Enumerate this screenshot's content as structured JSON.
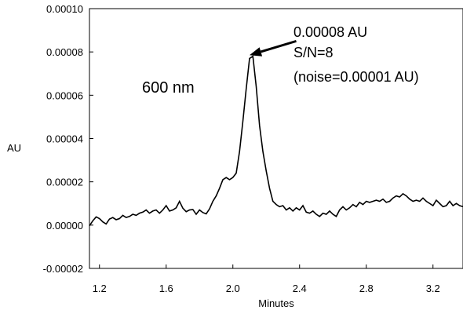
{
  "chart_data": {
    "type": "line",
    "title": "",
    "xlabel": "Minutes",
    "ylabel": "AU",
    "xlim": [
      1.14,
      3.38
    ],
    "ylim": [
      -2e-05,
      0.0001
    ],
    "xticks": [
      "1.2",
      "1.6",
      "2.0",
      "2.4",
      "2.8",
      "3.2"
    ],
    "yticks": [
      "0.00010",
      "0.00008",
      "0.00006",
      "0.00004",
      "0.00002",
      "0.00000",
      "-0.00002"
    ],
    "grid": false,
    "legend": "none",
    "line_color": "#000000",
    "series": [
      {
        "x": [
          1.14,
          1.16,
          1.18,
          1.2,
          1.22,
          1.24,
          1.26,
          1.28,
          1.3,
          1.32,
          1.34,
          1.36,
          1.38,
          1.4,
          1.42,
          1.44,
          1.46,
          1.48,
          1.5,
          1.52,
          1.54,
          1.56,
          1.58,
          1.6,
          1.62,
          1.64,
          1.66,
          1.68,
          1.7,
          1.72,
          1.74,
          1.76,
          1.78,
          1.8,
          1.82,
          1.84,
          1.86,
          1.88,
          1.9,
          1.92,
          1.94,
          1.96,
          1.98,
          2.0,
          2.02,
          2.04,
          2.06,
          2.08,
          2.1,
          2.12,
          2.14,
          2.16,
          2.18,
          2.2,
          2.22,
          2.24,
          2.26,
          2.28,
          2.3,
          2.32,
          2.34,
          2.36,
          2.38,
          2.4,
          2.42,
          2.44,
          2.46,
          2.48,
          2.5,
          2.52,
          2.54,
          2.56,
          2.58,
          2.6,
          2.62,
          2.64,
          2.66,
          2.68,
          2.7,
          2.72,
          2.74,
          2.76,
          2.78,
          2.8,
          2.82,
          2.84,
          2.86,
          2.88,
          2.9,
          2.92,
          2.94,
          2.96,
          2.98,
          3.0,
          3.02,
          3.04,
          3.06,
          3.08,
          3.1,
          3.12,
          3.14,
          3.16,
          3.18,
          3.2,
          3.22,
          3.24,
          3.26,
          3.28,
          3.3,
          3.32,
          3.34,
          3.36,
          3.38
        ],
        "y": [
          -3e-07,
          2e-06,
          3.8e-06,
          3e-06,
          1.5e-06,
          5e-07,
          2.8e-06,
          3.5e-06,
          2.5e-06,
          3e-06,
          4.5e-06,
          3.5e-06,
          4e-06,
          5e-06,
          4.5e-06,
          5.5e-06,
          6e-06,
          7e-06,
          5.5e-06,
          6.5e-06,
          7e-06,
          5.5e-06,
          7e-06,
          9e-06,
          6.5e-06,
          7e-06,
          8e-06,
          1.1e-05,
          7.8e-06,
          6.2e-06,
          7e-06,
          7.2e-06,
          5e-06,
          7e-06,
          5.8e-06,
          5.2e-06,
          7.5e-06,
          1.1e-05,
          1.35e-05,
          1.7e-05,
          2.1e-05,
          2.2e-05,
          2.1e-05,
          2.2e-05,
          2.4e-05,
          3.4e-05,
          4.8e-05,
          6.3e-05,
          7.7e-05,
          7.8e-05,
          6.4e-05,
          4.6e-05,
          3.4e-05,
          2.5e-05,
          1.7e-05,
          1.1e-05,
          9.5e-06,
          8.5e-06,
          9e-06,
          7e-06,
          8e-06,
          6.5e-06,
          8e-06,
          7e-06,
          9e-06,
          6e-06,
          5.5e-06,
          6.5e-06,
          5e-06,
          4e-06,
          5.5e-06,
          5e-06,
          6.5e-06,
          5e-06,
          4e-06,
          7e-06,
          8.5e-06,
          7e-06,
          8e-06,
          9.5e-06,
          8.5e-06,
          1.05e-05,
          9.5e-06,
          1.1e-05,
          1.05e-05,
          1.1e-05,
          1.15e-05,
          1.1e-05,
          1.2e-05,
          1.05e-05,
          1.1e-05,
          1.25e-05,
          1.35e-05,
          1.3e-05,
          1.45e-05,
          1.35e-05,
          1.2e-05,
          1.1e-05,
          1.15e-05,
          1.1e-05,
          1.25e-05,
          1.1e-05,
          1e-05,
          9e-06,
          1.15e-05,
          1e-05,
          8.5e-06,
          9e-06,
          1.1e-05,
          9e-06,
          1e-05,
          9e-06,
          8.5e-06
        ]
      }
    ],
    "annotations": {
      "wavelength": "600 nm",
      "peak_height": "0.00008 AU",
      "sn": "S/N=8",
      "noise": "(noise=0.00001 AU)"
    },
    "arrow": {
      "from": [
        2.38,
        8.5e-05
      ],
      "to": [
        2.1,
        7.85e-05
      ]
    }
  }
}
